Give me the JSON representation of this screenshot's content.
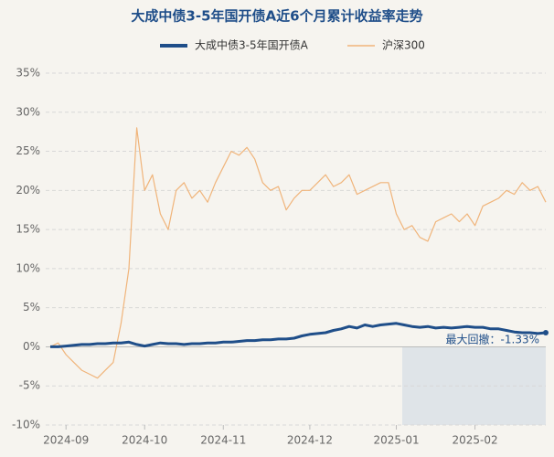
{
  "chart_data": {
    "type": "line",
    "title": "大成中债3-5年国开债A近6个月累计收益率走势",
    "categories": [
      null,
      null,
      "2024-09",
      null,
      null,
      null,
      null,
      null,
      null,
      null,
      null,
      null,
      "2024-10",
      null,
      null,
      null,
      null,
      null,
      null,
      null,
      null,
      null,
      "2024-11",
      null,
      null,
      null,
      null,
      null,
      null,
      null,
      null,
      null,
      null,
      "2024-12",
      null,
      null,
      null,
      null,
      null,
      null,
      null,
      null,
      null,
      null,
      "2025-01",
      null,
      null,
      null,
      null,
      null,
      null,
      null,
      null,
      null,
      "2025-02",
      null,
      null,
      null,
      null,
      null,
      null,
      null,
      null,
      null
    ],
    "series": [
      {
        "name": "大成中债3-5年国开债A",
        "color": "#1f4e89",
        "values": [
          0,
          0,
          0.1,
          0.2,
          0.3,
          0.3,
          0.4,
          0.4,
          0.5,
          0.5,
          0.6,
          0.3,
          0.1,
          0.3,
          0.5,
          0.4,
          0.4,
          0.3,
          0.4,
          0.4,
          0.5,
          0.5,
          0.6,
          0.6,
          0.7,
          0.8,
          0.8,
          0.9,
          0.9,
          1.0,
          1.0,
          1.1,
          1.4,
          1.6,
          1.7,
          1.8,
          2.1,
          2.3,
          2.6,
          2.4,
          2.8,
          2.6,
          2.8,
          2.9,
          3.0,
          2.8,
          2.6,
          2.5,
          2.6,
          2.4,
          2.5,
          2.4,
          2.5,
          2.6,
          2.5,
          2.5,
          2.3,
          2.3,
          2.1,
          1.9,
          1.8,
          1.8,
          1.7,
          1.8
        ]
      },
      {
        "name": "沪深300",
        "color": "#f0b47a",
        "values": [
          0,
          0.5,
          -1,
          -2,
          -3,
          -3.5,
          -4,
          -3,
          -2,
          3,
          10,
          28,
          20,
          22,
          17,
          15,
          20,
          21,
          19,
          20,
          18.5,
          21,
          23,
          25,
          24.5,
          25.5,
          24,
          21,
          20,
          20.5,
          17.5,
          19,
          20,
          20,
          21,
          22,
          20.5,
          21,
          22,
          19.5,
          20,
          20.5,
          21,
          21,
          17,
          15,
          15.5,
          14,
          13.5,
          16,
          16.5,
          17,
          16,
          17,
          15.5,
          18,
          18.5,
          19,
          20,
          19.5,
          21,
          20,
          20.5,
          18.5
        ]
      }
    ],
    "ylim": [
      -10,
      35
    ],
    "yticks": [
      {
        "value": -10,
        "label": "-10%"
      },
      {
        "value": -5,
        "label": "-5%"
      },
      {
        "value": 0,
        "label": "0%"
      },
      {
        "value": 5,
        "label": "5%"
      },
      {
        "value": 10,
        "label": "10%"
      },
      {
        "value": 15,
        "label": "15%"
      },
      {
        "value": 20,
        "label": "20%"
      },
      {
        "value": 25,
        "label": "25%"
      },
      {
        "value": 30,
        "label": "30%"
      },
      {
        "value": 35,
        "label": "35%"
      }
    ],
    "grid": true,
    "annotation": "最大回撤：-1.33%"
  }
}
